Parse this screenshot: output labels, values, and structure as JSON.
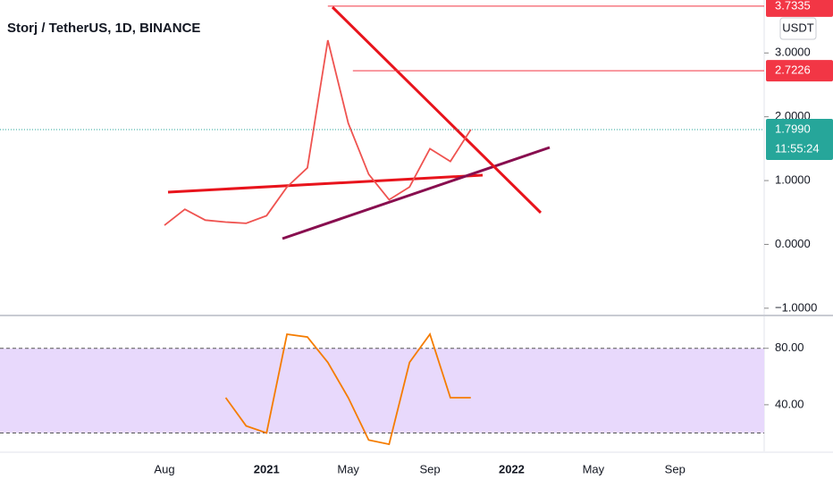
{
  "chart_data": [
    {
      "type": "line",
      "title": "Storj / TetherUS, 1D, BINANCE",
      "currency": "USDT",
      "categories": [
        null,
        "Aug",
        null,
        null,
        null,
        null,
        "2021",
        null,
        null,
        null,
        "May",
        null,
        null,
        null,
        "Sep",
        null,
        null,
        null,
        "2022",
        null,
        null,
        null,
        "May",
        null,
        null,
        null,
        "Sep",
        null,
        null,
        null
      ],
      "values": [
        null,
        0.3,
        0.55,
        0.38,
        0.35,
        0.33,
        0.45,
        0.9,
        1.2,
        3.2,
        1.9,
        1.1,
        0.7,
        0.9,
        1.5,
        1.3,
        1.799,
        null,
        null,
        null,
        null,
        null,
        null,
        null,
        null,
        null,
        null,
        null,
        null,
        null
      ],
      "color": "#ef5350",
      "ylim": [
        -1.1,
        3.83
      ],
      "yticks": [
        {
          "value": 3,
          "label": "3.0000"
        },
        {
          "value": 2,
          "label": "2.0000"
        },
        {
          "value": 1,
          "label": "1.0000"
        },
        {
          "value": 0,
          "label": "0.0000"
        },
        {
          "value": -1,
          "label": "−1.0000"
        }
      ],
      "annotations": [
        3.7335,
        2.7226
      ],
      "last_price": {
        "value": 1.799,
        "label": "1.7990"
      },
      "countdown": "11:55:24"
    },
    {
      "type": "line",
      "values": [
        null,
        null,
        null,
        null,
        45,
        25,
        20,
        90,
        88,
        70,
        45,
        15,
        12,
        70,
        90,
        45,
        45,
        null,
        null,
        null,
        null,
        null,
        null,
        null,
        null,
        null,
        null,
        null,
        null,
        null
      ],
      "color": "#f57c00",
      "ylim": [
        7,
        102
      ],
      "yticks": [
        {
          "value": 80,
          "label": "80.00"
        },
        {
          "value": 40,
          "label": "40.00"
        }
      ],
      "bands": [
        20,
        80
      ]
    }
  ]
}
